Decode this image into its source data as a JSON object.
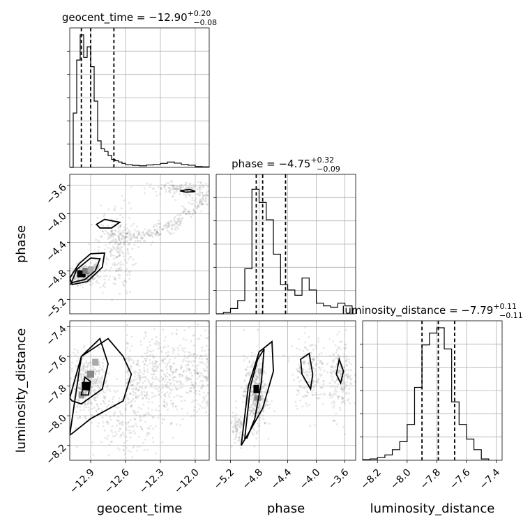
{
  "chart_data": {
    "type": "corner",
    "parameters": [
      {
        "key": "geocent_time",
        "label": "geocent_time",
        "range": [
          -13.08,
          -11.88
        ],
        "ticks": [
          -12.9,
          -12.6,
          -12.3,
          -12.0
        ],
        "tick_labels": [
          "−12.9",
          "−12.6",
          "−12.3",
          "−12.0"
        ],
        "title": {
          "main": "geocent_time = −12.90",
          "sup": "+0.20",
          "sub": "−0.08"
        },
        "quantiles": [
          -12.98,
          -12.9,
          -12.7
        ],
        "hist": {
          "bins": [
            -13.08,
            -13.05,
            -13.02,
            -12.99,
            -12.96,
            -12.93,
            -12.9,
            -12.87,
            -12.84,
            -12.81,
            -12.78,
            -12.75,
            -12.72,
            -12.69,
            -12.66,
            -12.63,
            -12.6,
            -12.54,
            -12.48,
            -12.42,
            -12.36,
            -12.3,
            -12.24,
            -12.18,
            -12.12,
            -12.06,
            -12.0,
            -11.94,
            -11.88
          ],
          "counts": [
            0.0,
            0.41,
            0.81,
            1.0,
            0.83,
            0.91,
            0.76,
            0.5,
            0.2,
            0.14,
            0.12,
            0.09,
            0.06,
            0.05,
            0.04,
            0.03,
            0.02,
            0.015,
            0.012,
            0.018,
            0.022,
            0.03,
            0.04,
            0.032,
            0.022,
            0.016,
            0.006,
            0.004
          ]
        }
      },
      {
        "key": "phase",
        "label": "phase",
        "range": [
          -5.4,
          -3.45
        ],
        "ticks": [
          -5.2,
          -4.8,
          -4.4,
          -4.0,
          -3.6
        ],
        "tick_labels": [
          "−5.2",
          "−4.8",
          "−4.4",
          "−4.0",
          "−3.6"
        ],
        "title": {
          "main": "phase = −4.75",
          "sup": "+0.32",
          "sub": "−0.09"
        },
        "quantiles": [
          -4.84,
          -4.75,
          -4.43
        ],
        "hist": {
          "bins": [
            -5.4,
            -5.3,
            -5.2,
            -5.1,
            -5.0,
            -4.9,
            -4.8,
            -4.7,
            -4.6,
            -4.5,
            -4.4,
            -4.3,
            -4.2,
            -4.1,
            -4.0,
            -3.9,
            -3.8,
            -3.7,
            -3.6,
            -3.5
          ],
          "counts": [
            0.0,
            0.01,
            0.04,
            0.1,
            0.34,
            0.94,
            0.84,
            0.71,
            0.45,
            0.22,
            0.18,
            0.14,
            0.27,
            0.18,
            0.08,
            0.06,
            0.05,
            0.08,
            0.06
          ]
        }
      },
      {
        "key": "luminosity_distance",
        "label": "luminosity_distance",
        "range": [
          -8.3,
          -7.36
        ],
        "ticks": [
          -8.2,
          -8.0,
          -7.8,
          -7.6,
          -7.4
        ],
        "tick_labels": [
          "−8.2",
          "−8.0",
          "−7.8",
          "−7.6",
          "−7.4"
        ],
        "title": {
          "main": "luminosity_distance = −7.79",
          "sup": "+0.11",
          "sub": "−0.11"
        },
        "quantiles": [
          -7.9,
          -7.79,
          -7.68
        ],
        "hist": {
          "bins": [
            -8.3,
            -8.25,
            -8.2,
            -8.15,
            -8.1,
            -8.05,
            -8.0,
            -7.95,
            -7.9,
            -7.85,
            -7.8,
            -7.75,
            -7.7,
            -7.65,
            -7.6,
            -7.55,
            -7.5,
            -7.45
          ],
          "counts": [
            0.005,
            0.01,
            0.02,
            0.04,
            0.08,
            0.14,
            0.27,
            0.55,
            0.87,
            0.96,
            1.0,
            0.84,
            0.44,
            0.27,
            0.16,
            0.08,
            0.01
          ]
        }
      }
    ],
    "y_tick_labels_left": {
      "phase": [
        "−3.6",
        "−4.0",
        "−4.4",
        "−4.8",
        "−5.2"
      ],
      "luminosity_distance": [
        "−7.4",
        "−7.6",
        "−7.8",
        "−8.0",
        "−8.2"
      ]
    },
    "grid": true
  }
}
